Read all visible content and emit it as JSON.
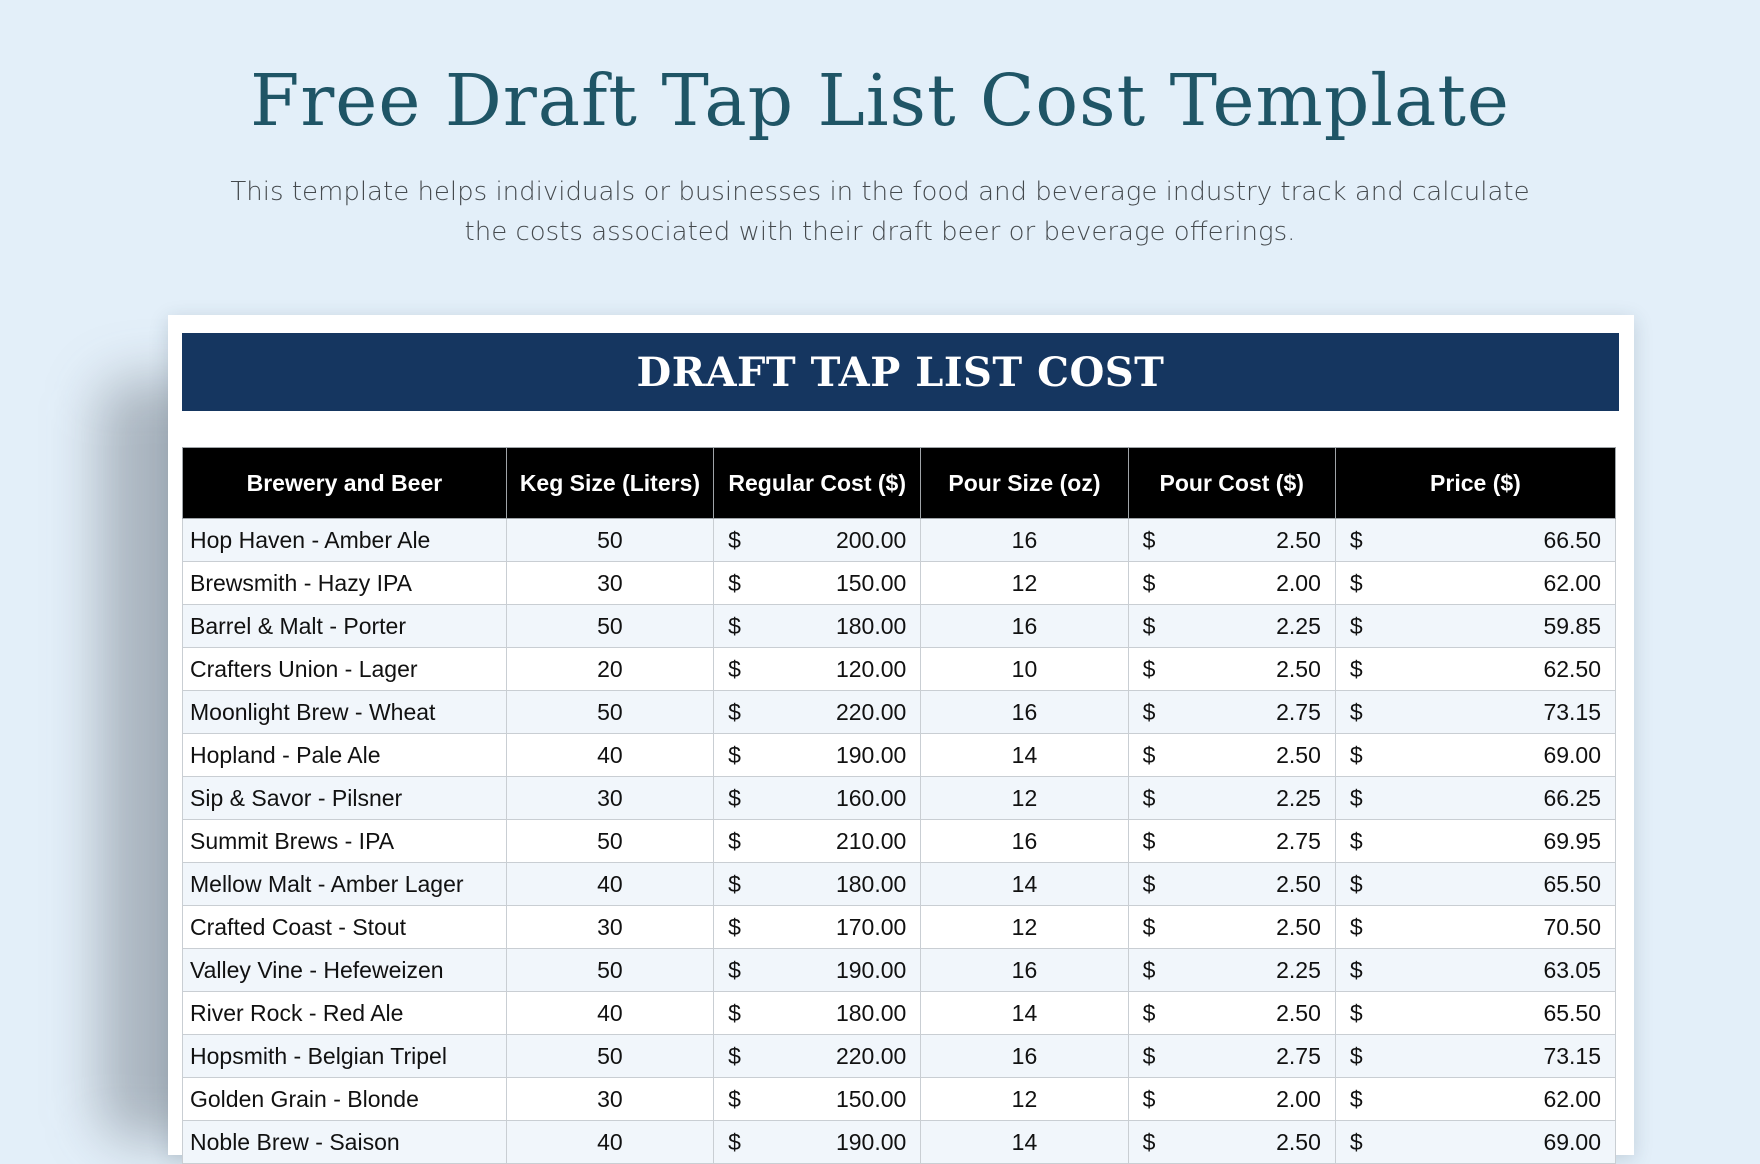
{
  "page": {
    "title": "Free Draft Tap List Cost Template",
    "subtitle": "This template helps individuals or businesses in the food and beverage industry track and calculate the costs associated with their draft beer or beverage offerings."
  },
  "sheet": {
    "banner_title": "DRAFT TAP LIST COST",
    "currency_symbol": "$",
    "columns": [
      "Brewery and Beer",
      "Keg Size (Liters)",
      "Regular Cost ($)",
      "Pour Size (oz)",
      "Pour Cost ($)",
      "Price ($)"
    ],
    "rows": [
      {
        "beer": "Hop Haven - Amber Ale",
        "keg_size": "50",
        "regular_cost": "200.00",
        "pour_size": "16",
        "pour_cost": "2.50",
        "price": "66.50"
      },
      {
        "beer": "Brewsmith - Hazy IPA",
        "keg_size": "30",
        "regular_cost": "150.00",
        "pour_size": "12",
        "pour_cost": "2.00",
        "price": "62.00"
      },
      {
        "beer": "Barrel & Malt - Porter",
        "keg_size": "50",
        "regular_cost": "180.00",
        "pour_size": "16",
        "pour_cost": "2.25",
        "price": "59.85"
      },
      {
        "beer": "Crafters Union - Lager",
        "keg_size": "20",
        "regular_cost": "120.00",
        "pour_size": "10",
        "pour_cost": "2.50",
        "price": "62.50"
      },
      {
        "beer": "Moonlight Brew - Wheat",
        "keg_size": "50",
        "regular_cost": "220.00",
        "pour_size": "16",
        "pour_cost": "2.75",
        "price": "73.15"
      },
      {
        "beer": "Hopland - Pale Ale",
        "keg_size": "40",
        "regular_cost": "190.00",
        "pour_size": "14",
        "pour_cost": "2.50",
        "price": "69.00"
      },
      {
        "beer": "Sip & Savor - Pilsner",
        "keg_size": "30",
        "regular_cost": "160.00",
        "pour_size": "12",
        "pour_cost": "2.25",
        "price": "66.25"
      },
      {
        "beer": "Summit Brews - IPA",
        "keg_size": "50",
        "regular_cost": "210.00",
        "pour_size": "16",
        "pour_cost": "2.75",
        "price": "69.95"
      },
      {
        "beer": "Mellow Malt - Amber Lager",
        "keg_size": "40",
        "regular_cost": "180.00",
        "pour_size": "14",
        "pour_cost": "2.50",
        "price": "65.50"
      },
      {
        "beer": "Crafted Coast - Stout",
        "keg_size": "30",
        "regular_cost": "170.00",
        "pour_size": "12",
        "pour_cost": "2.50",
        "price": "70.50"
      },
      {
        "beer": "Valley Vine - Hefeweizen",
        "keg_size": "50",
        "regular_cost": "190.00",
        "pour_size": "16",
        "pour_cost": "2.25",
        "price": "63.05"
      },
      {
        "beer": "River Rock - Red Ale",
        "keg_size": "40",
        "regular_cost": "180.00",
        "pour_size": "14",
        "pour_cost": "2.50",
        "price": "65.50"
      },
      {
        "beer": "Hopsmith - Belgian Tripel",
        "keg_size": "50",
        "regular_cost": "220.00",
        "pour_size": "16",
        "pour_cost": "2.75",
        "price": "73.15"
      },
      {
        "beer": "Golden Grain - Blonde",
        "keg_size": "30",
        "regular_cost": "150.00",
        "pour_size": "12",
        "pour_cost": "2.00",
        "price": "62.00"
      },
      {
        "beer": "Noble Brew - Saison",
        "keg_size": "40",
        "regular_cost": "190.00",
        "pour_size": "14",
        "pour_cost": "2.50",
        "price": "69.00"
      }
    ]
  }
}
